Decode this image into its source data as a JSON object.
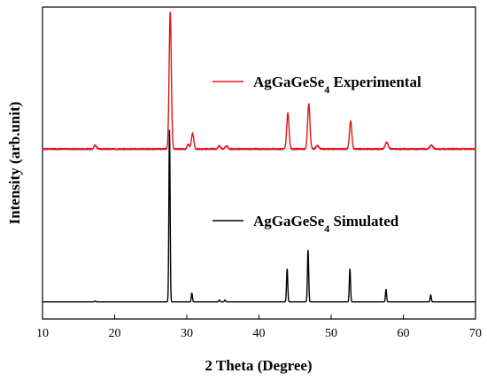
{
  "chart_data": {
    "type": "line",
    "title": "",
    "xlabel": "2 Theta (Degree)",
    "ylabel": "Intensity (arb.unit)",
    "xlim": [
      10,
      70
    ],
    "ylim": [
      0,
      1
    ],
    "x_ticks": [
      10,
      20,
      30,
      40,
      50,
      60,
      70
    ],
    "y_tick_labels": "none",
    "grid": false,
    "legend": "inline labels near each curve",
    "series": [
      {
        "name": "AgGaGeSe4 Experimental",
        "name_parts": {
          "base": "AgGaGeSe",
          "sub": "4",
          "suffix": " Experimental"
        },
        "color": "#e0141b",
        "baseline": 0.545,
        "noise": 0.004,
        "peaks": [
          {
            "x": 17.3,
            "height": 0.012,
            "width": 0.18
          },
          {
            "x": 27.7,
            "height": 0.44,
            "width": 0.15
          },
          {
            "x": 30.2,
            "height": 0.015,
            "width": 0.15
          },
          {
            "x": 30.8,
            "height": 0.05,
            "width": 0.16
          },
          {
            "x": 34.5,
            "height": 0.01,
            "width": 0.18
          },
          {
            "x": 35.5,
            "height": 0.01,
            "width": 0.18
          },
          {
            "x": 44.0,
            "height": 0.115,
            "width": 0.16
          },
          {
            "x": 46.9,
            "height": 0.145,
            "width": 0.16
          },
          {
            "x": 48.1,
            "height": 0.01,
            "width": 0.2
          },
          {
            "x": 52.7,
            "height": 0.09,
            "width": 0.16
          },
          {
            "x": 57.7,
            "height": 0.022,
            "width": 0.2
          },
          {
            "x": 63.9,
            "height": 0.012,
            "width": 0.22
          }
        ]
      },
      {
        "name": "AgGaGeSe4 Simulated",
        "name_parts": {
          "base": "AgGaGeSe",
          "sub": "4",
          "suffix": " Simulated"
        },
        "color": "#000000",
        "baseline": 0.055,
        "noise": 0,
        "peaks": [
          {
            "x": 17.3,
            "height": 0.003,
            "width": 0.08
          },
          {
            "x": 27.6,
            "height": 0.55,
            "width": 0.085
          },
          {
            "x": 30.7,
            "height": 0.028,
            "width": 0.08
          },
          {
            "x": 34.5,
            "height": 0.006,
            "width": 0.08
          },
          {
            "x": 35.3,
            "height": 0.006,
            "width": 0.08
          },
          {
            "x": 43.9,
            "height": 0.105,
            "width": 0.085
          },
          {
            "x": 46.8,
            "height": 0.165,
            "width": 0.085
          },
          {
            "x": 52.6,
            "height": 0.105,
            "width": 0.085
          },
          {
            "x": 57.6,
            "height": 0.04,
            "width": 0.08
          },
          {
            "x": 63.8,
            "height": 0.022,
            "width": 0.08
          }
        ]
      }
    ]
  }
}
